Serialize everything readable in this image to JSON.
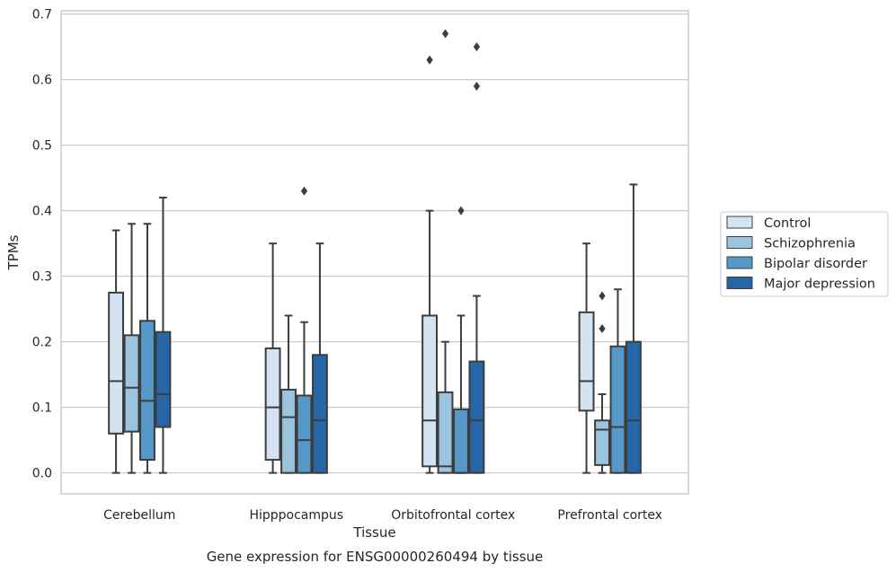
{
  "chart_data": {
    "type": "box",
    "title": "Gene expression for ENSG00000260494 by tissue",
    "xlabel": "Tissue",
    "ylabel": "TPMs",
    "ylim": [
      -0.032,
      0.705
    ],
    "yticks": [
      "0.0",
      "0.1",
      "0.2",
      "0.3",
      "0.4",
      "0.5",
      "0.6",
      "0.7"
    ],
    "grid": "horizontal",
    "legend_position": "right",
    "categories": [
      "Cerebellum",
      "Hipppocampus",
      "Orbitofrontal cortex",
      "Prefrontal cortex"
    ],
    "series": [
      {
        "name": "Control",
        "color": "#d4e3f2",
        "boxes": [
          {
            "min": 0.0,
            "q1": 0.06,
            "median": 0.14,
            "q3": 0.275,
            "max": 0.37,
            "outliers": []
          },
          {
            "min": 0.0,
            "q1": 0.02,
            "median": 0.1,
            "q3": 0.19,
            "max": 0.35,
            "outliers": []
          },
          {
            "min": 0.0,
            "q1": 0.01,
            "median": 0.08,
            "q3": 0.24,
            "max": 0.4,
            "outliers": [
              0.63
            ]
          },
          {
            "min": 0.0,
            "q1": 0.095,
            "median": 0.14,
            "q3": 0.245,
            "max": 0.35,
            "outliers": []
          }
        ]
      },
      {
        "name": "Schizophrenia",
        "color": "#9bc5de",
        "boxes": [
          {
            "min": 0.0,
            "q1": 0.063,
            "median": 0.13,
            "q3": 0.21,
            "max": 0.38,
            "outliers": []
          },
          {
            "min": 0.0,
            "q1": 0.0,
            "median": 0.085,
            "q3": 0.127,
            "max": 0.24,
            "outliers": []
          },
          {
            "min": 0.0,
            "q1": 0.0,
            "median": 0.01,
            "q3": 0.123,
            "max": 0.2,
            "outliers": [
              0.67
            ]
          },
          {
            "min": 0.0,
            "q1": 0.012,
            "median": 0.066,
            "q3": 0.08,
            "max": 0.12,
            "outliers": [
              0.22,
              0.27
            ]
          }
        ]
      },
      {
        "name": "Bipolar disorder",
        "color": "#5698c8",
        "boxes": [
          {
            "min": 0.0,
            "q1": 0.02,
            "median": 0.11,
            "q3": 0.232,
            "max": 0.38,
            "outliers": []
          },
          {
            "min": 0.0,
            "q1": 0.0,
            "median": 0.05,
            "q3": 0.118,
            "max": 0.23,
            "outliers": [
              0.43
            ]
          },
          {
            "min": 0.0,
            "q1": 0.0,
            "median": 0.0,
            "q3": 0.097,
            "max": 0.24,
            "outliers": [
              0.4
            ]
          },
          {
            "min": 0.0,
            "q1": 0.0,
            "median": 0.07,
            "q3": 0.193,
            "max": 0.28,
            "outliers": []
          }
        ]
      },
      {
        "name": "Major depression",
        "color": "#2566a6",
        "boxes": [
          {
            "min": 0.0,
            "q1": 0.07,
            "median": 0.12,
            "q3": 0.215,
            "max": 0.42,
            "outliers": []
          },
          {
            "min": 0.0,
            "q1": 0.0,
            "median": 0.08,
            "q3": 0.18,
            "max": 0.35,
            "outliers": []
          },
          {
            "min": 0.0,
            "q1": 0.0,
            "median": 0.08,
            "q3": 0.17,
            "max": 0.27,
            "outliers": [
              0.59,
              0.65
            ]
          },
          {
            "min": 0.0,
            "q1": 0.0,
            "median": 0.08,
            "q3": 0.2,
            "max": 0.44,
            "outliers": []
          }
        ]
      }
    ]
  }
}
